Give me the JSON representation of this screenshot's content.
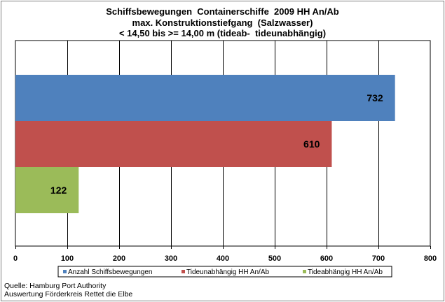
{
  "chart_data": {
    "type": "bar",
    "orientation": "horizontal",
    "title_lines": [
      "Schiffsbewegungen  Containerschiffe  2009 HH An/Ab",
      "max. Konstruktionstiefgang  (Salzwasser)",
      "< 14,50 bis >= 14,00 m (tideab-  tideunabhängig)"
    ],
    "series": [
      {
        "name": "Anzahl Schiffsbewegungen",
        "value": 732,
        "color": "#4f81bd"
      },
      {
        "name": "Tideunabhängig HH An/Ab",
        "value": 610,
        "color": "#c0504d"
      },
      {
        "name": "Tideabhängig HH An/Ab",
        "value": 122,
        "color": "#9bbb59"
      }
    ],
    "xlim": [
      0,
      800
    ],
    "x_ticks": [
      0,
      100,
      200,
      300,
      400,
      500,
      600,
      700,
      800
    ],
    "grid": true,
    "legend_position": "bottom"
  },
  "footer": {
    "source_line_1": "Quelle: Hamburg Port Authority",
    "source_line_2": "Auswertung Förderkreis Rettet die Elbe"
  }
}
